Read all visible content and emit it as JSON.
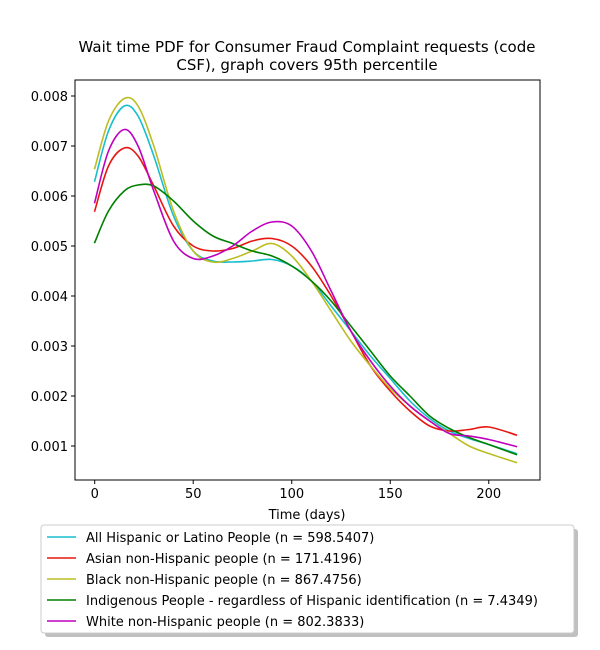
{
  "chart_data": {
    "type": "line",
    "title_lines": [
      "Wait time PDF for Consumer Fraud Complaint  requests (code",
      "CSF), graph covers 95th percentile"
    ],
    "xlabel": "Time (days)",
    "ylabel": "",
    "xlim": [
      -10,
      226
    ],
    "ylim": [
      0.00032,
      0.00832
    ],
    "x_ticks": [
      0,
      50,
      100,
      150,
      200
    ],
    "y_ticks": [
      0.001,
      0.002,
      0.003,
      0.004,
      0.005,
      0.006,
      0.007,
      0.008
    ],
    "y_tick_labels": [
      "0.001",
      "0.002",
      "0.003",
      "0.004",
      "0.005",
      "0.006",
      "0.007",
      "0.008"
    ],
    "grid": false,
    "legend_placement": "below-plot",
    "series": [
      {
        "name": "All Hispanic or Latino People (n = 598.5407)",
        "color": "#17becf",
        "x": [
          0,
          7,
          15,
          22,
          30,
          40,
          50,
          60,
          70,
          80,
          90,
          100,
          110,
          120,
          130,
          140,
          150,
          160,
          170,
          180,
          190,
          200,
          214
        ],
        "y": [
          0.0063,
          0.0073,
          0.0078,
          0.0076,
          0.0068,
          0.0056,
          0.0049,
          0.0047,
          0.00468,
          0.0047,
          0.00473,
          0.0046,
          0.0043,
          0.0038,
          0.0033,
          0.0028,
          0.00235,
          0.0019,
          0.00155,
          0.0013,
          0.00115,
          0.00103,
          0.00085
        ]
      },
      {
        "name": "Asian non-Hispanic people (n = 171.4196)",
        "color": "#e8160f",
        "x": [
          0,
          7,
          15,
          22,
          30,
          40,
          50,
          60,
          70,
          80,
          90,
          100,
          110,
          120,
          130,
          140,
          150,
          160,
          170,
          180,
          190,
          200,
          214
        ],
        "y": [
          0.0057,
          0.0066,
          0.00696,
          0.0068,
          0.0062,
          0.0054,
          0.005,
          0.0049,
          0.00495,
          0.0051,
          0.00515,
          0.005,
          0.0046,
          0.004,
          0.0033,
          0.0026,
          0.0021,
          0.0017,
          0.0014,
          0.0013,
          0.00133,
          0.00138,
          0.00122
        ]
      },
      {
        "name": "Black non-Hispanic people (n = 867.4756)",
        "color": "#bcbd22",
        "x": [
          0,
          7,
          15,
          22,
          30,
          40,
          50,
          60,
          70,
          80,
          90,
          100,
          110,
          120,
          130,
          140,
          150,
          160,
          170,
          180,
          190,
          200,
          214
        ],
        "y": [
          0.00655,
          0.0075,
          0.00795,
          0.0078,
          0.007,
          0.0057,
          0.0049,
          0.00468,
          0.00475,
          0.0049,
          0.00505,
          0.0048,
          0.0043,
          0.0037,
          0.0031,
          0.0026,
          0.00215,
          0.0018,
          0.0015,
          0.00125,
          0.001,
          0.00085,
          0.00067
        ]
      },
      {
        "name": "Indigenous People - regardless of Hispanic identification (n = 7.4349)",
        "color": "#008000",
        "x": [
          0,
          7,
          15,
          22,
          30,
          40,
          50,
          60,
          70,
          80,
          90,
          100,
          110,
          120,
          130,
          140,
          150,
          160,
          170,
          180,
          190,
          200,
          214
        ],
        "y": [
          0.00507,
          0.0057,
          0.0061,
          0.00622,
          0.0062,
          0.0059,
          0.0055,
          0.0052,
          0.00505,
          0.0049,
          0.0048,
          0.0046,
          0.0043,
          0.0039,
          0.0034,
          0.0029,
          0.0024,
          0.002,
          0.0016,
          0.00135,
          0.00117,
          0.00103,
          0.00083
        ]
      },
      {
        "name": "White non-Hispanic people (n = 802.3833)",
        "color": "#bf00bf",
        "x": [
          0,
          7,
          15,
          22,
          30,
          40,
          50,
          60,
          70,
          80,
          90,
          100,
          110,
          120,
          130,
          140,
          150,
          160,
          170,
          180,
          190,
          200,
          214
        ],
        "y": [
          0.00587,
          0.0069,
          0.00733,
          0.007,
          0.0061,
          0.0051,
          0.00475,
          0.0048,
          0.005,
          0.0053,
          0.00548,
          0.0054,
          0.0049,
          0.0041,
          0.0033,
          0.0027,
          0.0022,
          0.0018,
          0.0015,
          0.00125,
          0.0012,
          0.00113,
          0.00099
        ]
      }
    ]
  }
}
